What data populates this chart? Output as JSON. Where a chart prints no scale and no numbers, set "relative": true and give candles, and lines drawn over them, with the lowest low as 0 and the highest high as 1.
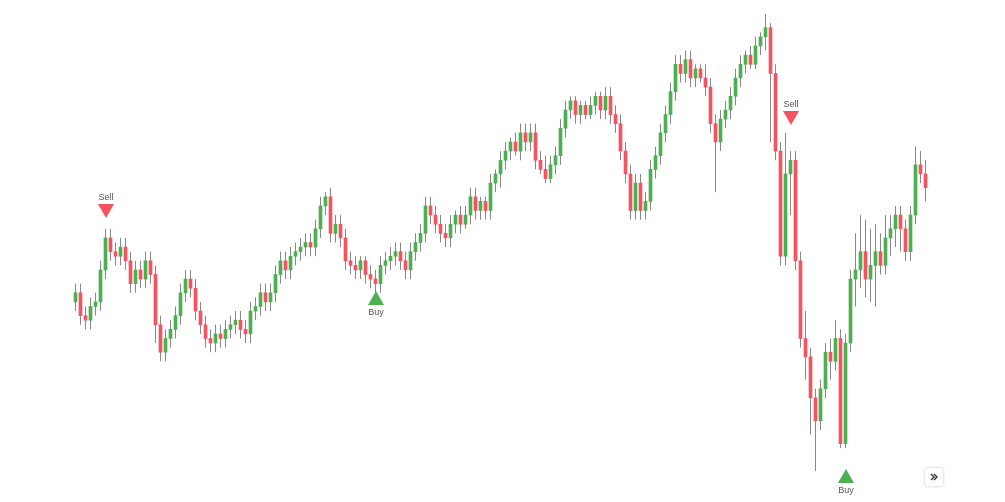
{
  "chart_data": {
    "type": "candlestick",
    "relative": true,
    "categories": [
      null,
      null,
      null,
      null,
      null,
      null,
      null,
      null,
      null,
      null,
      null,
      null,
      null,
      null,
      null,
      null,
      null,
      null,
      null,
      null,
      null,
      null,
      null,
      null,
      null,
      null,
      null,
      null,
      null,
      null,
      null,
      null,
      null,
      null,
      null,
      null,
      null,
      null,
      null,
      null,
      null,
      null,
      null,
      null,
      null,
      null,
      null,
      null,
      null,
      null,
      null,
      null,
      null,
      null,
      null,
      null,
      null,
      null,
      null,
      null,
      null,
      null,
      null,
      null,
      null,
      null,
      null,
      null,
      null,
      null,
      null,
      null,
      null,
      null,
      null,
      null,
      null,
      null,
      null,
      null,
      null,
      null,
      null,
      null,
      null,
      null,
      null,
      null,
      null,
      null,
      null,
      null,
      null,
      null,
      null,
      null,
      null,
      null,
      null,
      null,
      null,
      null,
      null,
      null,
      null,
      null,
      null,
      null,
      null,
      null,
      null,
      null,
      null,
      null,
      null,
      null,
      null,
      null,
      null,
      null,
      null,
      null,
      null,
      null,
      null,
      null,
      null,
      null,
      null,
      null,
      null,
      null,
      null,
      null,
      null,
      null,
      null,
      null,
      null,
      null,
      null,
      null,
      null,
      null,
      null,
      null,
      null,
      null,
      null,
      null,
      null,
      null,
      null,
      null,
      null,
      null,
      null,
      null,
      null,
      null,
      null,
      null,
      null,
      null,
      null,
      null,
      null,
      null,
      null,
      null,
      null
    ],
    "ohlc": [
      [
        0.37,
        0.41,
        0.35,
        0.39
      ],
      [
        0.39,
        0.41,
        0.32,
        0.34
      ],
      [
        0.34,
        0.36,
        0.31,
        0.33
      ],
      [
        0.33,
        0.38,
        0.31,
        0.36
      ],
      [
        0.36,
        0.39,
        0.34,
        0.37
      ],
      [
        0.37,
        0.46,
        0.35,
        0.44
      ],
      [
        0.44,
        0.53,
        0.42,
        0.51
      ],
      [
        0.51,
        0.53,
        0.46,
        0.48
      ],
      [
        0.48,
        0.5,
        0.45,
        0.47
      ],
      [
        0.47,
        0.51,
        0.45,
        0.49
      ],
      [
        0.49,
        0.51,
        0.44,
        0.46
      ],
      [
        0.46,
        0.48,
        0.39,
        0.41
      ],
      [
        0.41,
        0.46,
        0.39,
        0.44
      ],
      [
        0.44,
        0.46,
        0.4,
        0.42
      ],
      [
        0.42,
        0.48,
        0.4,
        0.46
      ],
      [
        0.46,
        0.48,
        0.41,
        0.43
      ],
      [
        0.43,
        0.45,
        0.28,
        0.32
      ],
      [
        0.32,
        0.34,
        0.24,
        0.26
      ],
      [
        0.26,
        0.31,
        0.24,
        0.29
      ],
      [
        0.29,
        0.33,
        0.27,
        0.31
      ],
      [
        0.31,
        0.36,
        0.29,
        0.34
      ],
      [
        0.34,
        0.41,
        0.32,
        0.39
      ],
      [
        0.39,
        0.44,
        0.37,
        0.42
      ],
      [
        0.42,
        0.44,
        0.38,
        0.4
      ],
      [
        0.4,
        0.42,
        0.33,
        0.35
      ],
      [
        0.35,
        0.37,
        0.3,
        0.32
      ],
      [
        0.32,
        0.34,
        0.27,
        0.29
      ],
      [
        0.29,
        0.31,
        0.26,
        0.28
      ],
      [
        0.28,
        0.32,
        0.26,
        0.3
      ],
      [
        0.3,
        0.32,
        0.27,
        0.29
      ],
      [
        0.29,
        0.33,
        0.27,
        0.31
      ],
      [
        0.31,
        0.34,
        0.29,
        0.32
      ],
      [
        0.32,
        0.35,
        0.3,
        0.33
      ],
      [
        0.33,
        0.35,
        0.29,
        0.31
      ],
      [
        0.31,
        0.33,
        0.28,
        0.3
      ],
      [
        0.3,
        0.37,
        0.28,
        0.35
      ],
      [
        0.35,
        0.38,
        0.33,
        0.36
      ],
      [
        0.36,
        0.41,
        0.34,
        0.39
      ],
      [
        0.39,
        0.41,
        0.35,
        0.37
      ],
      [
        0.37,
        0.41,
        0.35,
        0.39
      ],
      [
        0.39,
        0.45,
        0.37,
        0.43
      ],
      [
        0.43,
        0.48,
        0.41,
        0.46
      ],
      [
        0.46,
        0.48,
        0.42,
        0.44
      ],
      [
        0.44,
        0.49,
        0.42,
        0.47
      ],
      [
        0.47,
        0.5,
        0.45,
        0.48
      ],
      [
        0.48,
        0.51,
        0.46,
        0.49
      ],
      [
        0.49,
        0.52,
        0.47,
        0.5
      ],
      [
        0.5,
        0.52,
        0.47,
        0.49
      ],
      [
        0.49,
        0.55,
        0.47,
        0.53
      ],
      [
        0.53,
        0.6,
        0.51,
        0.58
      ],
      [
        0.58,
        0.61,
        0.56,
        0.6
      ],
      [
        0.6,
        0.62,
        0.5,
        0.52
      ],
      [
        0.52,
        0.56,
        0.5,
        0.54
      ],
      [
        0.54,
        0.56,
        0.49,
        0.51
      ],
      [
        0.51,
        0.53,
        0.44,
        0.46
      ],
      [
        0.46,
        0.48,
        0.43,
        0.45
      ],
      [
        0.45,
        0.47,
        0.42,
        0.44
      ],
      [
        0.44,
        0.47,
        0.42,
        0.46
      ],
      [
        0.46,
        0.47,
        0.41,
        0.43
      ],
      [
        0.43,
        0.45,
        0.4,
        0.42
      ],
      [
        0.42,
        0.44,
        0.39,
        0.41
      ],
      [
        0.41,
        0.47,
        0.39,
        0.45
      ],
      [
        0.45,
        0.48,
        0.43,
        0.46
      ],
      [
        0.46,
        0.49,
        0.44,
        0.47
      ],
      [
        0.47,
        0.5,
        0.45,
        0.48
      ],
      [
        0.48,
        0.5,
        0.44,
        0.46
      ],
      [
        0.46,
        0.48,
        0.42,
        0.44
      ],
      [
        0.44,
        0.5,
        0.42,
        0.48
      ],
      [
        0.48,
        0.52,
        0.46,
        0.5
      ],
      [
        0.5,
        0.54,
        0.48,
        0.52
      ],
      [
        0.52,
        0.6,
        0.5,
        0.58
      ],
      [
        0.58,
        0.6,
        0.54,
        0.56
      ],
      [
        0.56,
        0.58,
        0.52,
        0.54
      ],
      [
        0.54,
        0.56,
        0.5,
        0.52
      ],
      [
        0.52,
        0.54,
        0.49,
        0.51
      ],
      [
        0.51,
        0.56,
        0.49,
        0.54
      ],
      [
        0.54,
        0.57,
        0.52,
        0.56
      ],
      [
        0.56,
        0.58,
        0.52,
        0.54
      ],
      [
        0.54,
        0.58,
        0.53,
        0.56
      ],
      [
        0.56,
        0.62,
        0.54,
        0.6
      ],
      [
        0.6,
        0.62,
        0.55,
        0.57
      ],
      [
        0.57,
        0.6,
        0.55,
        0.59
      ],
      [
        0.59,
        0.6,
        0.55,
        0.57
      ],
      [
        0.57,
        0.65,
        0.55,
        0.63
      ],
      [
        0.63,
        0.66,
        0.61,
        0.65
      ],
      [
        0.65,
        0.7,
        0.62,
        0.68
      ],
      [
        0.68,
        0.72,
        0.66,
        0.7
      ],
      [
        0.7,
        0.73,
        0.68,
        0.72
      ],
      [
        0.72,
        0.74,
        0.69,
        0.7
      ],
      [
        0.7,
        0.76,
        0.68,
        0.74
      ],
      [
        0.74,
        0.76,
        0.7,
        0.72
      ],
      [
        0.72,
        0.76,
        0.7,
        0.74
      ],
      [
        0.74,
        0.76,
        0.66,
        0.68
      ],
      [
        0.68,
        0.7,
        0.65,
        0.66
      ],
      [
        0.66,
        0.69,
        0.63,
        0.64
      ],
      [
        0.64,
        0.69,
        0.63,
        0.67
      ],
      [
        0.67,
        0.71,
        0.65,
        0.69
      ],
      [
        0.69,
        0.77,
        0.67,
        0.75
      ],
      [
        0.75,
        0.81,
        0.73,
        0.79
      ],
      [
        0.79,
        0.82,
        0.77,
        0.81
      ],
      [
        0.81,
        0.82,
        0.76,
        0.78
      ],
      [
        0.78,
        0.81,
        0.76,
        0.8
      ],
      [
        0.8,
        0.81,
        0.77,
        0.78
      ],
      [
        0.78,
        0.82,
        0.77,
        0.8
      ],
      [
        0.8,
        0.83,
        0.78,
        0.82
      ],
      [
        0.82,
        0.83,
        0.77,
        0.79
      ],
      [
        0.79,
        0.84,
        0.77,
        0.82
      ],
      [
        0.82,
        0.84,
        0.76,
        0.78
      ],
      [
        0.78,
        0.8,
        0.74,
        0.76
      ],
      [
        0.76,
        0.78,
        0.68,
        0.7
      ],
      [
        0.7,
        0.72,
        0.63,
        0.65
      ],
      [
        0.65,
        0.67,
        0.55,
        0.57
      ],
      [
        0.57,
        0.65,
        0.55,
        0.63
      ],
      [
        0.63,
        0.65,
        0.55,
        0.57
      ],
      [
        0.57,
        0.61,
        0.55,
        0.59
      ],
      [
        0.59,
        0.68,
        0.57,
        0.66
      ],
      [
        0.66,
        0.71,
        0.64,
        0.69
      ],
      [
        0.69,
        0.76,
        0.67,
        0.74
      ],
      [
        0.74,
        0.8,
        0.72,
        0.78
      ],
      [
        0.78,
        0.85,
        0.76,
        0.83
      ],
      [
        0.83,
        0.91,
        0.81,
        0.89
      ],
      [
        0.89,
        0.91,
        0.85,
        0.87
      ],
      [
        0.87,
        0.92,
        0.85,
        0.9
      ],
      [
        0.9,
        0.92,
        0.84,
        0.86
      ],
      [
        0.86,
        0.89,
        0.84,
        0.88
      ],
      [
        0.88,
        0.89,
        0.85,
        0.86
      ],
      [
        0.86,
        0.89,
        0.82,
        0.84
      ],
      [
        0.84,
        0.86,
        0.74,
        0.76
      ],
      [
        0.76,
        0.78,
        0.61,
        0.72
      ],
      [
        0.72,
        0.79,
        0.7,
        0.77
      ],
      [
        0.77,
        0.81,
        0.75,
        0.79
      ],
      [
        0.79,
        0.84,
        0.77,
        0.82
      ],
      [
        0.82,
        0.88,
        0.8,
        0.86
      ],
      [
        0.86,
        0.91,
        0.84,
        0.89
      ],
      [
        0.89,
        0.92,
        0.87,
        0.91
      ],
      [
        0.91,
        0.93,
        0.88,
        0.89
      ],
      [
        0.89,
        0.95,
        0.88,
        0.93
      ],
      [
        0.93,
        0.96,
        0.91,
        0.95
      ],
      [
        0.95,
        1.0,
        0.92,
        0.97
      ],
      [
        0.97,
        0.98,
        0.72,
        0.87
      ],
      [
        0.87,
        0.89,
        0.68,
        0.7
      ],
      [
        0.7,
        0.72,
        0.45,
        0.47
      ],
      [
        0.47,
        0.74,
        0.45,
        0.65
      ],
      [
        0.65,
        0.7,
        0.56,
        0.68
      ],
      [
        0.68,
        0.7,
        0.44,
        0.46
      ],
      [
        0.46,
        0.48,
        0.27,
        0.29
      ],
      [
        0.29,
        0.35,
        0.2,
        0.25
      ],
      [
        0.25,
        0.27,
        0.08,
        0.16
      ],
      [
        0.16,
        0.18,
        0.0,
        0.11
      ],
      [
        0.11,
        0.2,
        0.09,
        0.18
      ],
      [
        0.18,
        0.28,
        0.16,
        0.26
      ],
      [
        0.26,
        0.29,
        0.2,
        0.24
      ],
      [
        0.24,
        0.33,
        0.22,
        0.29
      ],
      [
        0.29,
        0.31,
        0.05,
        0.06
      ],
      [
        0.06,
        0.3,
        0.05,
        0.28
      ],
      [
        0.28,
        0.44,
        0.26,
        0.42
      ],
      [
        0.42,
        0.52,
        0.36,
        0.44
      ],
      [
        0.44,
        0.56,
        0.4,
        0.48
      ],
      [
        0.48,
        0.55,
        0.38,
        0.42
      ],
      [
        0.42,
        0.53,
        0.37,
        0.45
      ],
      [
        0.45,
        0.54,
        0.36,
        0.48
      ],
      [
        0.48,
        0.52,
        0.43,
        0.45
      ],
      [
        0.45,
        0.56,
        0.43,
        0.51
      ],
      [
        0.51,
        0.56,
        0.47,
        0.53
      ],
      [
        0.53,
        0.58,
        0.49,
        0.56
      ],
      [
        0.56,
        0.58,
        0.48,
        0.53
      ],
      [
        0.53,
        0.55,
        0.46,
        0.48
      ],
      [
        0.48,
        0.58,
        0.46,
        0.56
      ],
      [
        0.56,
        0.71,
        0.54,
        0.67
      ],
      [
        0.67,
        0.7,
        0.63,
        0.65
      ],
      [
        0.65,
        0.68,
        0.59,
        0.62
      ]
    ],
    "annotations": [
      "Sell",
      "Buy",
      "Sell",
      "Buy"
    ]
  }
}
